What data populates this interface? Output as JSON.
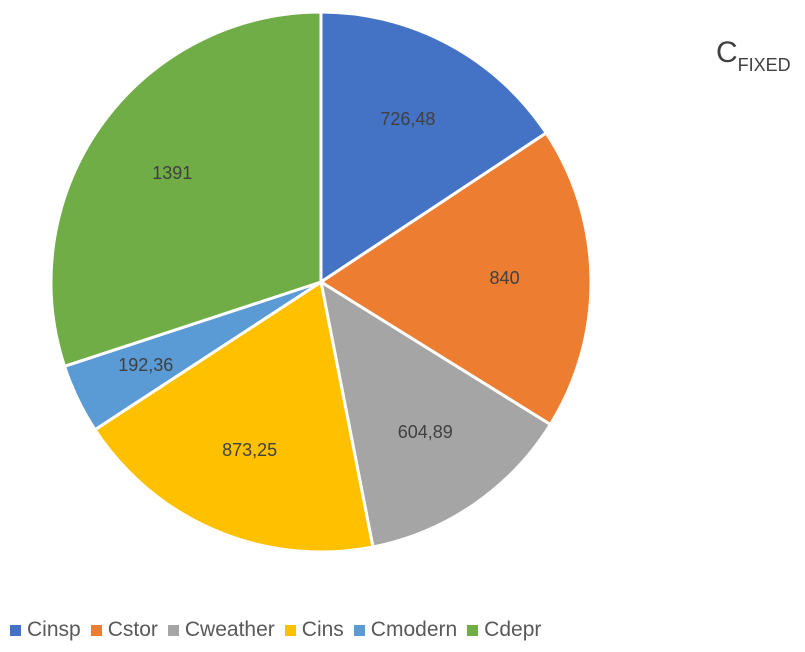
{
  "chart_data": {
    "type": "pie",
    "title": {
      "main": "C",
      "sub": "FIXED"
    },
    "categories": [
      "Cinsp",
      "Cstor",
      "Cweather",
      "Cins",
      "Cmodern",
      "Cdepr"
    ],
    "values": [
      726.48,
      840,
      604.89,
      873.25,
      192.36,
      1391
    ],
    "data_labels": [
      "726,48",
      "840",
      "604,89",
      "873,25",
      "192,36",
      "1391"
    ],
    "colors": [
      "#4472C4",
      "#ED7D31",
      "#A5A5A5",
      "#FFC000",
      "#5B9BD5",
      "#70AD47"
    ],
    "legend_position": "bottom",
    "start_angle": "12 o'clock",
    "direction": "clockwise"
  }
}
